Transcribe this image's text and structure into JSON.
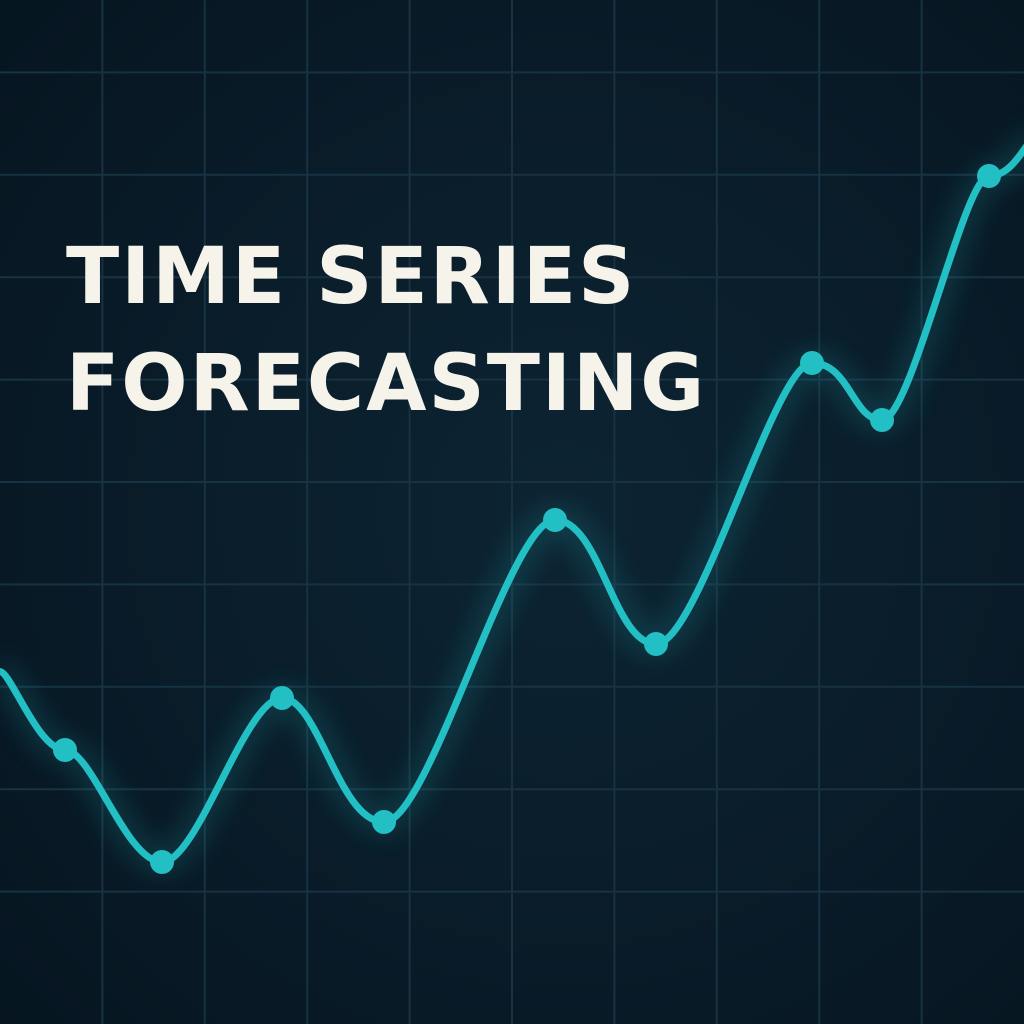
{
  "chart_data": {
    "type": "line",
    "title": [
      "TIME SERIES",
      "FORECASTING"
    ],
    "x": [
      6.5,
      16.2,
      28.2,
      38.4,
      55.5,
      65.6,
      81.2,
      88.2,
      98.9
    ],
    "series": [
      {
        "color": "#22c0c4",
        "values": [
          27.4,
          16.2,
          32.6,
          20.2,
          50.4,
          38.0,
          66.1,
          60.4,
          84.8
        ]
      }
    ],
    "xlim": [
      0,
      102.4
    ],
    "ylim": [
      0,
      102.4
    ],
    "grid": true
  }
}
